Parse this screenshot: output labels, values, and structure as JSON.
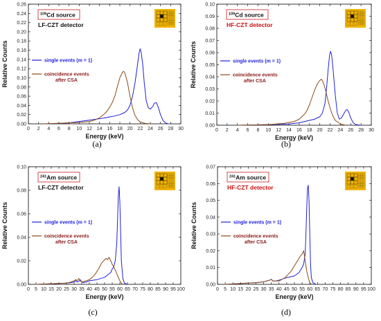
{
  "colors": {
    "single": "#1e1edc",
    "coincidence": "#8b4a14",
    "badge": "#f0b400",
    "red": "#cc1111"
  },
  "common": {
    "xlabel": "Energy (keV)",
    "ylabel": "Relative Counts"
  },
  "chart_data": [
    {
      "panel": "(a)",
      "type": "line",
      "source": "Cd source",
      "source_mass": "109",
      "detector": "LF-CZT detector",
      "detector_color": "#111111",
      "xlim": [
        0,
        30
      ],
      "ylim": [
        0,
        0.26
      ],
      "xticks": [
        "0",
        "2",
        "4",
        "6",
        "8",
        "10",
        "12",
        "14",
        "16",
        "18",
        "20",
        "22",
        "24",
        "26",
        "28",
        "30"
      ],
      "yticks": [
        "0.00",
        "0.02",
        "0.04",
        "0.06",
        "0.08",
        "0.10",
        "0.12",
        "0.14",
        "0.16",
        "0.18",
        "0.20",
        "0.22",
        "0.24",
        "0.26"
      ],
      "xlabel": "Energy (keV)",
      "ylabel": "Relative Counts",
      "series": [
        {
          "name": "single events (m = 1)",
          "legend": [
            "single events (m = 1)"
          ],
          "x": [
            3,
            6,
            8,
            10,
            12,
            14,
            15,
            16,
            17,
            18,
            19,
            19.5,
            20,
            20.5,
            21,
            21.5,
            21.8,
            22,
            22.2,
            22.5,
            22.8,
            23.2,
            23.6,
            24,
            24.5,
            24.8,
            25.2,
            25.6,
            26,
            26.5,
            27,
            27.5
          ],
          "y": [
            0,
            0.001,
            0.002,
            0.005,
            0.008,
            0.011,
            0.013,
            0.015,
            0.017,
            0.02,
            0.025,
            0.03,
            0.04,
            0.06,
            0.09,
            0.13,
            0.155,
            0.163,
            0.155,
            0.13,
            0.09,
            0.05,
            0.035,
            0.032,
            0.038,
            0.045,
            0.046,
            0.035,
            0.02,
            0.007,
            0.002,
            0
          ]
        },
        {
          "name": "coincidence events after CSA",
          "legend": [
            "coincidence events",
            "after CSA"
          ],
          "x": [
            3,
            8,
            10,
            12,
            13,
            14,
            15,
            15.5,
            16,
            16.5,
            17,
            17.5,
            18,
            18.5,
            18.8,
            19,
            19.5,
            20,
            20.5,
            21,
            21.5,
            22,
            23,
            24
          ],
          "y": [
            0,
            0.002,
            0.003,
            0.005,
            0.008,
            0.013,
            0.022,
            0.028,
            0.036,
            0.046,
            0.06,
            0.08,
            0.1,
            0.112,
            0.114,
            0.11,
            0.09,
            0.06,
            0.035,
            0.018,
            0.009,
            0.004,
            0.001,
            0
          ]
        }
      ]
    },
    {
      "panel": "(b)",
      "type": "line",
      "source": "Cd source",
      "source_mass": "109",
      "detector": "HF-CZT detector",
      "detector_color": "#cc1111",
      "xlim": [
        0,
        30
      ],
      "ylim": [
        0,
        0.1
      ],
      "xticks": [
        "0",
        "2",
        "4",
        "6",
        "8",
        "10",
        "12",
        "14",
        "16",
        "18",
        "20",
        "22",
        "24",
        "26",
        "28",
        "30"
      ],
      "yticks": [
        "0.00",
        "0.01",
        "0.02",
        "0.03",
        "0.04",
        "0.05",
        "0.06",
        "0.07",
        "0.08",
        "0.09",
        "0.10"
      ],
      "xlabel": "Energy (keV)",
      "ylabel": "Relative Counts",
      "series": [
        {
          "name": "single events (m = 1)",
          "legend": [
            "single events (m = 1)"
          ],
          "x": [
            4,
            10,
            14,
            16,
            17,
            18,
            19,
            20,
            20.5,
            21,
            21.3,
            21.6,
            21.9,
            22.1,
            22.3,
            22.6,
            23,
            23.4,
            23.8,
            24.2,
            24.6,
            25,
            25.3,
            25.6,
            26,
            26.5,
            27,
            28
          ],
          "y": [
            0,
            0.0005,
            0.001,
            0.002,
            0.003,
            0.004,
            0.005,
            0.007,
            0.01,
            0.018,
            0.03,
            0.045,
            0.058,
            0.061,
            0.058,
            0.045,
            0.025,
            0.01,
            0.005,
            0.006,
            0.009,
            0.012,
            0.013,
            0.011,
            0.006,
            0.002,
            0.0005,
            0
          ]
        },
        {
          "name": "coincidence events after CSA",
          "legend": [
            "coincidence events",
            "after CSA"
          ],
          "x": [
            4,
            10,
            13,
            15,
            16,
            17,
            17.5,
            18,
            18.5,
            19,
            19.5,
            20,
            20.3,
            20.6,
            21,
            21.5,
            22,
            22.5,
            23,
            24,
            25
          ],
          "y": [
            0,
            0.0005,
            0.0015,
            0.003,
            0.005,
            0.009,
            0.012,
            0.017,
            0.023,
            0.029,
            0.034,
            0.037,
            0.038,
            0.036,
            0.031,
            0.022,
            0.014,
            0.008,
            0.004,
            0.001,
            0
          ]
        }
      ]
    },
    {
      "panel": "(c)",
      "type": "line",
      "source": "Am source",
      "source_mass": "241",
      "detector": "LF-CZT detector",
      "detector_color": "#111111",
      "xlim": [
        0,
        100
      ],
      "ylim": [
        0,
        0.1
      ],
      "xticks": [
        "0",
        "5",
        "10",
        "15",
        "20",
        "25",
        "30",
        "35",
        "40",
        "45",
        "50",
        "55",
        "60",
        "65",
        "70",
        "75",
        "80",
        "85",
        "90",
        "95",
        "100"
      ],
      "yticks": [
        "0.00",
        "0.02",
        "0.04",
        "0.06",
        "0.08",
        "0.10"
      ],
      "xlabel": "Energy (keV)",
      "ylabel": "Relative Counts",
      "series": [
        {
          "name": "single events (m = 1)",
          "legend": [
            "single events (m = 1)"
          ],
          "x": [
            5,
            15,
            25,
            28,
            30,
            31,
            32,
            33,
            34,
            35,
            36,
            38,
            40,
            45,
            50,
            52,
            54,
            55,
            56,
            57,
            58,
            58.5,
            59,
            59.5,
            60,
            60.5,
            61,
            62,
            63,
            65
          ],
          "y": [
            0,
            0.0005,
            0.001,
            0.0015,
            0.002,
            0.003,
            0.002,
            0.0025,
            0.004,
            0.002,
            0.0015,
            0.002,
            0.003,
            0.004,
            0.006,
            0.008,
            0.01,
            0.013,
            0.015,
            0.02,
            0.035,
            0.055,
            0.075,
            0.083,
            0.07,
            0.045,
            0.02,
            0.005,
            0.001,
            0
          ]
        },
        {
          "name": "coincidence events after CSA",
          "legend": [
            "coincidence events",
            "after CSA"
          ],
          "x": [
            5,
            15,
            25,
            28,
            30,
            31,
            32,
            33,
            34,
            35,
            38,
            40,
            42,
            44,
            46,
            48,
            50,
            51,
            52,
            53,
            54,
            55,
            56,
            57,
            58,
            59,
            60,
            61,
            62
          ],
          "y": [
            0,
            0.0005,
            0.001,
            0.002,
            0.003,
            0.004,
            0.003,
            0.005,
            0.003,
            0.002,
            0.003,
            0.004,
            0.006,
            0.009,
            0.013,
            0.018,
            0.021,
            0.022,
            0.021,
            0.023,
            0.02,
            0.017,
            0.015,
            0.012,
            0.009,
            0.006,
            0.003,
            0.001,
            0
          ]
        }
      ]
    },
    {
      "panel": "(d)",
      "type": "line",
      "source": "Am source",
      "source_mass": "241",
      "detector": "HF-CZT detector",
      "detector_color": "#cc1111",
      "xlim": [
        0,
        100
      ],
      "ylim": [
        0,
        0.07
      ],
      "xticks": [
        "0",
        "5",
        "10",
        "15",
        "20",
        "25",
        "30",
        "35",
        "40",
        "45",
        "50",
        "55",
        "60",
        "65",
        "70",
        "75",
        "80",
        "85",
        "90",
        "95",
        "100"
      ],
      "yticks": [
        "0.00",
        "0.01",
        "0.02",
        "0.03",
        "0.04",
        "0.05",
        "0.06",
        "0.07"
      ],
      "xlabel": "Energy (keV)",
      "ylabel": "Relative Counts",
      "series": [
        {
          "name": "single events (m = 1)",
          "legend": [
            "single events (m = 1)"
          ],
          "x": [
            5,
            15,
            25,
            30,
            32,
            34,
            35,
            36,
            38,
            40,
            45,
            50,
            53,
            55,
            56,
            57,
            57.5,
            58,
            58.5,
            59,
            59.5,
            60,
            60.5,
            61,
            62,
            64
          ],
          "y": [
            0,
            0.0005,
            0.001,
            0.0015,
            0.002,
            0.0025,
            0.003,
            0.002,
            0.002,
            0.0025,
            0.004,
            0.005,
            0.007,
            0.01,
            0.012,
            0.018,
            0.03,
            0.045,
            0.057,
            0.059,
            0.05,
            0.03,
            0.012,
            0.004,
            0.001,
            0
          ]
        },
        {
          "name": "coincidence events after CSA",
          "legend": [
            "coincidence events",
            "after CSA"
          ],
          "x": [
            5,
            15,
            25,
            30,
            32,
            34,
            35,
            36,
            38,
            40,
            42,
            44,
            46,
            48,
            50,
            52,
            54,
            55,
            56,
            57,
            58,
            59,
            60,
            61
          ],
          "y": [
            0,
            0.0005,
            0.001,
            0.0015,
            0.002,
            0.0025,
            0.003,
            0.002,
            0.002,
            0.002,
            0.003,
            0.004,
            0.006,
            0.008,
            0.011,
            0.014,
            0.017,
            0.018,
            0.02,
            0.014,
            0.008,
            0.004,
            0.001,
            0
          ]
        }
      ]
    }
  ]
}
